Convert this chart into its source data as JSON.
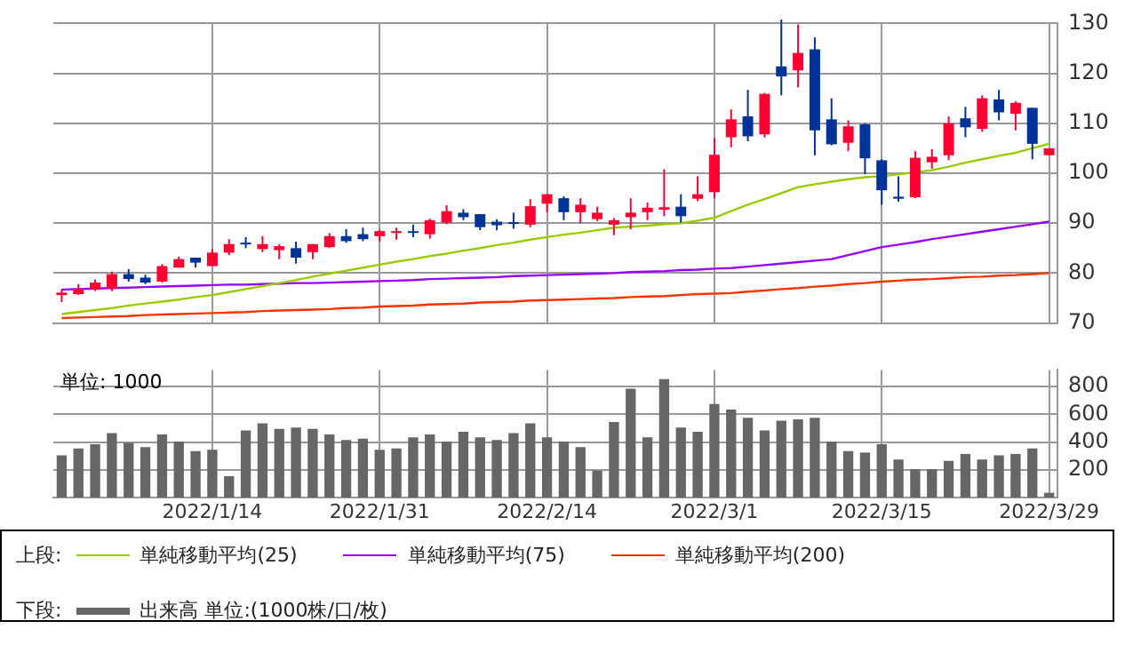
{
  "chart_data": [
    {
      "type": "candlestick",
      "legend_title": "上段:",
      "legend": "bottom",
      "grid": true,
      "tick_labels": "y",
      "categories": [
        null,
        null,
        null,
        null,
        null,
        null,
        null,
        null,
        null,
        "2022/1/14",
        null,
        null,
        null,
        null,
        null,
        null,
        null,
        null,
        null,
        "2022/1/31",
        null,
        null,
        null,
        null,
        null,
        null,
        null,
        null,
        null,
        "2022/2/14",
        null,
        null,
        null,
        null,
        null,
        null,
        null,
        null,
        null,
        "2022/3/1",
        null,
        null,
        null,
        null,
        null,
        null,
        null,
        null,
        null,
        "2022/3/15",
        null,
        null,
        null,
        null,
        null,
        null,
        null,
        null,
        null,
        "2022/3/29"
      ],
      "ylim": [
        70,
        130
      ],
      "yticks": [
        70,
        80,
        90,
        100,
        110,
        120,
        130
      ],
      "ohlc": [
        [
          75.6,
          76.7,
          74.2,
          76.1
        ],
        [
          75.8,
          77.8,
          75.6,
          76.9
        ],
        [
          76.7,
          78.7,
          76.4,
          78.1
        ],
        [
          76.9,
          80.3,
          76.4,
          79.8
        ],
        [
          79.8,
          80.8,
          78.3,
          78.8
        ],
        [
          79.1,
          79.7,
          77.8,
          78.1
        ],
        [
          78.3,
          81.8,
          78.1,
          81.4
        ],
        [
          81.1,
          83.3,
          81.1,
          82.8
        ],
        [
          83.1,
          83.1,
          81.1,
          82.1
        ],
        [
          81.4,
          84.8,
          81.4,
          84.1
        ],
        [
          84.1,
          86.8,
          83.6,
          85.8
        ],
        [
          86.1,
          87.2,
          85.0,
          85.9
        ],
        [
          84.8,
          87.4,
          84.2,
          85.8
        ],
        [
          84.6,
          85.8,
          82.8,
          85.4
        ],
        [
          85.0,
          86.3,
          81.9,
          83.1
        ],
        [
          84.2,
          85.8,
          82.8,
          85.8
        ],
        [
          85.2,
          88.0,
          85.0,
          87.4
        ],
        [
          87.4,
          88.8,
          86.1,
          86.4
        ],
        [
          87.8,
          89.1,
          86.4,
          86.8
        ],
        [
          87.4,
          88.7,
          86.3,
          88.4
        ],
        [
          88.3,
          89.1,
          86.7,
          88.4
        ],
        [
          88.4,
          89.7,
          87.2,
          88.3
        ],
        [
          87.8,
          90.9,
          86.9,
          90.6
        ],
        [
          90.1,
          93.6,
          89.8,
          92.4
        ],
        [
          92.1,
          92.8,
          90.6,
          91.2
        ],
        [
          91.8,
          91.8,
          88.6,
          89.2
        ],
        [
          90.3,
          90.8,
          88.6,
          89.6
        ],
        [
          90.2,
          92.1,
          88.9,
          90.1
        ],
        [
          89.7,
          94.8,
          89.2,
          93.4
        ],
        [
          93.9,
          95.8,
          92.2,
          95.8
        ],
        [
          95.0,
          95.4,
          90.6,
          92.2
        ],
        [
          92.2,
          95.0,
          90.0,
          93.7
        ],
        [
          90.8,
          93.3,
          90.4,
          92.1
        ],
        [
          89.7,
          91.0,
          87.6,
          90.6
        ],
        [
          91.2,
          95.0,
          88.8,
          92.1
        ],
        [
          92.2,
          94.1,
          90.6,
          93.1
        ],
        [
          92.7,
          100.8,
          91.4,
          93.2
        ],
        [
          93.3,
          95.8,
          90.1,
          91.4
        ],
        [
          94.9,
          99.4,
          94.4,
          95.8
        ],
        [
          96.2,
          107.0,
          95.0,
          103.7
        ],
        [
          107.2,
          112.8,
          105.2,
          110.8
        ],
        [
          111.4,
          116.7,
          106.4,
          107.4
        ],
        [
          107.8,
          116.1,
          107.2,
          115.9
        ],
        [
          121.4,
          130.8,
          115.6,
          119.4
        ],
        [
          120.6,
          129.8,
          117.2,
          124.1
        ],
        [
          124.8,
          127.2,
          103.6,
          108.6
        ],
        [
          110.8,
          115.0,
          105.6,
          105.8
        ],
        [
          106.1,
          110.6,
          104.4,
          109.4
        ],
        [
          109.8,
          110.0,
          99.8,
          103.0
        ],
        [
          102.6,
          102.8,
          93.7,
          96.6
        ],
        [
          95.3,
          99.4,
          94.3,
          94.9
        ],
        [
          95.2,
          104.4,
          95.0,
          103.1
        ],
        [
          102.2,
          104.8,
          100.9,
          103.3
        ],
        [
          103.6,
          111.4,
          102.6,
          110.0
        ],
        [
          111.0,
          113.3,
          107.2,
          109.2
        ],
        [
          108.9,
          115.6,
          108.3,
          115.0
        ],
        [
          114.8,
          116.7,
          110.6,
          112.2
        ],
        [
          111.9,
          114.4,
          108.6,
          114.1
        ],
        [
          113.1,
          113.1,
          102.8,
          105.9
        ],
        [
          103.6,
          105.0,
          103.6,
          105.0
        ]
      ],
      "colors": [
        "#ff0033",
        "#ff0033",
        "#ff0033",
        "#ff0033",
        "#003399",
        "#003399",
        "#ff0033",
        "#ff0033",
        "#003399",
        "#ff0033",
        "#ff0033",
        "#003399",
        "#ff0033",
        "#ff0033",
        "#003399",
        "#ff0033",
        "#ff0033",
        "#003399",
        "#003399",
        "#ff0033",
        "#ff0033",
        "#003399",
        "#ff0033",
        "#ff0033",
        "#003399",
        "#003399",
        "#003399",
        "#003399",
        "#ff0033",
        "#ff0033",
        "#003399",
        "#ff0033",
        "#ff0033",
        "#ff0033",
        "#ff0033",
        "#ff0033",
        "#ff0033",
        "#003399",
        "#ff0033",
        "#ff0033",
        "#ff0033",
        "#003399",
        "#ff0033",
        "#003399",
        "#ff0033",
        "#003399",
        "#003399",
        "#ff0033",
        "#003399",
        "#003399",
        "#003399",
        "#ff0033",
        "#ff0033",
        "#ff0033",
        "#003399",
        "#ff0033",
        "#003399",
        "#ff0033",
        "#003399",
        "#ff0033"
      ],
      "series": [
        {
          "name": "単純移動平均(25)",
          "type": "line",
          "color": "#99cc00",
          "values": [
            71.8,
            72.2,
            72.6,
            73.0,
            73.5,
            73.9,
            74.3,
            74.7,
            75.2,
            75.6,
            76.2,
            76.8,
            77.4,
            78.0,
            78.6,
            79.3,
            79.9,
            80.5,
            81.1,
            81.7,
            82.3,
            82.8,
            83.4,
            83.9,
            84.5,
            85.0,
            85.6,
            86.1,
            86.7,
            87.2,
            87.7,
            88.1,
            88.6,
            89.1,
            89.3,
            89.5,
            89.8,
            90.0,
            90.5,
            91.1,
            92.4,
            93.7,
            94.8,
            96.0,
            97.2,
            97.8,
            98.3,
            98.8,
            99.2,
            99.4,
            99.8,
            100.2,
            100.6,
            101.3,
            102.1,
            102.8,
            103.5,
            104.1,
            105.0,
            105.9
          ]
        },
        {
          "name": "単純移動平均(75)",
          "type": "line",
          "color": "#9900ff",
          "values": [
            76.7,
            76.8,
            76.9,
            77.0,
            77.1,
            77.2,
            77.3,
            77.4,
            77.5,
            77.6,
            77.7,
            77.7,
            77.8,
            77.9,
            78.0,
            78.0,
            78.1,
            78.2,
            78.3,
            78.4,
            78.5,
            78.6,
            78.8,
            78.9,
            79.0,
            79.1,
            79.2,
            79.4,
            79.5,
            79.6,
            79.7,
            79.8,
            79.9,
            80.0,
            80.2,
            80.3,
            80.4,
            80.6,
            80.7,
            80.9,
            81.0,
            81.3,
            81.6,
            81.9,
            82.2,
            82.5,
            82.8,
            83.6,
            84.4,
            85.2,
            85.7,
            86.2,
            86.8,
            87.3,
            87.8,
            88.3,
            88.8,
            89.3,
            89.8,
            90.3
          ]
        },
        {
          "name": "単純移動平均(200)",
          "type": "line",
          "color": "#ff3300",
          "values": [
            71.0,
            71.1,
            71.2,
            71.3,
            71.4,
            71.6,
            71.7,
            71.8,
            71.9,
            72.0,
            72.1,
            72.2,
            72.4,
            72.5,
            72.6,
            72.7,
            72.8,
            73.0,
            73.1,
            73.3,
            73.4,
            73.5,
            73.7,
            73.8,
            73.9,
            74.1,
            74.2,
            74.3,
            74.5,
            74.6,
            74.7,
            74.8,
            74.9,
            75.0,
            75.2,
            75.3,
            75.4,
            75.6,
            75.8,
            75.9,
            76.0,
            76.3,
            76.5,
            76.8,
            77.0,
            77.3,
            77.5,
            77.8,
            78.0,
            78.3,
            78.5,
            78.7,
            78.8,
            79.0,
            79.2,
            79.3,
            79.5,
            79.6,
            79.8,
            80.0
          ]
        }
      ]
    },
    {
      "type": "bar",
      "legend_title": "下段:",
      "legend": "bottom",
      "grid": true,
      "annotations": [
        "単位: 1000"
      ],
      "categories": [
        null,
        null,
        null,
        null,
        null,
        null,
        null,
        null,
        null,
        "2022/1/14",
        null,
        null,
        null,
        null,
        null,
        null,
        null,
        null,
        null,
        "2022/1/31",
        null,
        null,
        null,
        null,
        null,
        null,
        null,
        null,
        null,
        "2022/2/14",
        null,
        null,
        null,
        null,
        null,
        null,
        null,
        null,
        null,
        "2022/3/1",
        null,
        null,
        null,
        null,
        null,
        null,
        null,
        null,
        null,
        "2022/3/15",
        null,
        null,
        null,
        null,
        null,
        null,
        null,
        null,
        null,
        "2022/3/29"
      ],
      "ylim": [
        0,
        920
      ],
      "yticks": [
        200,
        400,
        600,
        800
      ],
      "series": [
        {
          "name": "出来高 単位:(1000株/口/枚)",
          "color": "#666666",
          "values": [
            300,
            350,
            380,
            460,
            390,
            360,
            450,
            400,
            330,
            340,
            150,
            480,
            530,
            490,
            500,
            490,
            450,
            410,
            420,
            340,
            350,
            430,
            450,
            400,
            470,
            430,
            410,
            460,
            530,
            430,
            400,
            360,
            190,
            540,
            780,
            430,
            850,
            500,
            470,
            670,
            630,
            570,
            480,
            550,
            560,
            570,
            400,
            330,
            320,
            380,
            270,
            200,
            200,
            260,
            310,
            270,
            300,
            310,
            350,
            30
          ]
        }
      ]
    }
  ]
}
